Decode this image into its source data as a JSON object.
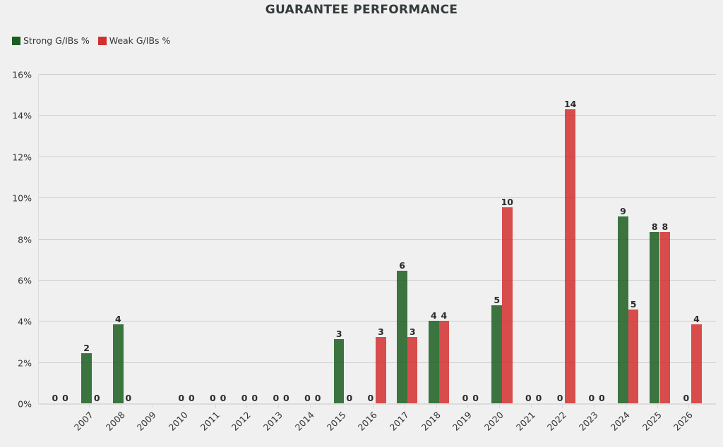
{
  "chart_data": {
    "type": "bar",
    "title": "GUARANTEE PERFORMANCE",
    "xlabel": "",
    "ylabel": "",
    "ylim": [
      0,
      16
    ],
    "yticks": [
      "0%",
      "2%",
      "4%",
      "6%",
      "8%",
      "10%",
      "12%",
      "14%",
      "16%"
    ],
    "grid": true,
    "legend_position": "top-left",
    "categories": [
      "",
      "2007",
      "2008",
      "2009",
      "2010",
      "2011",
      "2012",
      "2013",
      "2014",
      "2015",
      "2016",
      "2017",
      "2018",
      "2019",
      "2020",
      "2021",
      "2022",
      "2023",
      "2024",
      "2025",
      "2026"
    ],
    "series": [
      {
        "name": "Strong G/IBs %",
        "color": "#1b5e20",
        "values": [
          0,
          2.43,
          3.84,
          null,
          0,
          0,
          0,
          0,
          0,
          3.12,
          0,
          6.44,
          4.0,
          0,
          4.76,
          0,
          0,
          0,
          9.09,
          8.33,
          0
        ],
        "labels": [
          "0",
          "2",
          "4",
          "",
          "0",
          "0",
          "0",
          "0",
          "0",
          "3",
          "0",
          "6",
          "4",
          "0",
          "5",
          "0",
          "0",
          "0",
          "9",
          "8",
          "0"
        ]
      },
      {
        "name": "Weak G/IBs %",
        "color": "#d32f2f",
        "values": [
          0,
          0,
          0,
          null,
          0,
          0,
          0,
          0,
          0,
          0,
          3.22,
          3.22,
          4.0,
          0,
          9.52,
          0,
          14.29,
          0,
          4.55,
          8.33,
          3.85
        ],
        "labels": [
          "0",
          "0",
          "0",
          "",
          "0",
          "0",
          "0",
          "0",
          "0",
          "0",
          "3",
          "3",
          "4",
          "0",
          "10",
          "0",
          "14",
          "0",
          "5",
          "8",
          "4"
        ]
      }
    ]
  }
}
